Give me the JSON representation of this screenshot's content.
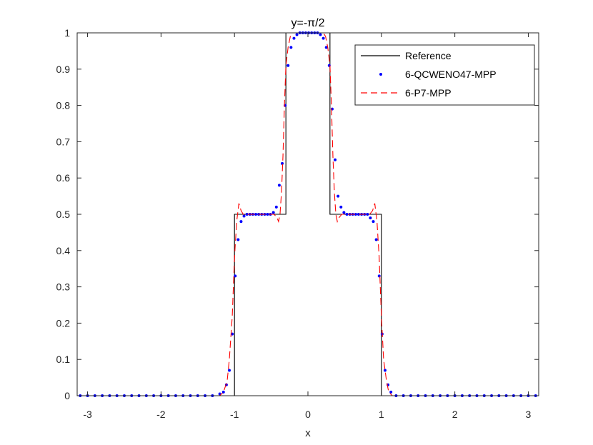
{
  "chart_data": {
    "type": "line",
    "title": "y=-π/2",
    "xlabel": "x",
    "ylabel": "",
    "xlim": [
      -3.14159,
      3.14159
    ],
    "ylim": [
      0,
      1
    ],
    "xticks": [
      -3,
      -2,
      -1,
      0,
      1,
      2,
      3
    ],
    "xtick_labels": [
      "-3",
      "-2",
      "-1",
      "0",
      "1",
      "2",
      "3"
    ],
    "yticks": [
      0,
      0.1,
      0.2,
      0.3,
      0.4,
      0.5,
      0.6,
      0.7,
      0.8,
      0.9,
      1
    ],
    "ytick_labels": [
      "0",
      "0.1",
      "0.2",
      "0.3",
      "0.4",
      "0.5",
      "0.6",
      "0.7",
      "0.8",
      "0.9",
      "1"
    ],
    "grid": false,
    "legend_position": "top-right",
    "series": [
      {
        "name": "Reference",
        "style": "solid",
        "color": "#000000",
        "x": [
          -3.14159,
          -1.0,
          -1.0,
          -0.3,
          -0.3,
          0.3,
          0.3,
          1.0,
          1.0,
          3.14159
        ],
        "y": [
          0,
          0,
          0.5,
          0.5,
          1.0,
          1.0,
          0.5,
          0.5,
          0,
          0
        ]
      },
      {
        "name": "6-QCWENO47-MPP",
        "style": "dots",
        "color": "#0000ff",
        "x": [
          -3.1,
          -3.0,
          -2.9,
          -2.8,
          -2.7,
          -2.6,
          -2.5,
          -2.4,
          -2.3,
          -2.2,
          -2.1,
          -2.0,
          -1.9,
          -1.8,
          -1.7,
          -1.6,
          -1.5,
          -1.4,
          -1.3,
          -1.2,
          -1.15,
          -1.11,
          -1.07,
          -1.03,
          -0.99,
          -0.95,
          -0.91,
          -0.87,
          -0.83,
          -0.79,
          -0.75,
          -0.71,
          -0.67,
          -0.63,
          -0.59,
          -0.55,
          -0.51,
          -0.47,
          -0.43,
          -0.39,
          -0.35,
          -0.31,
          -0.27,
          -0.23,
          -0.19,
          -0.15,
          -0.11,
          -0.07,
          -0.03,
          0.01,
          0.05,
          0.09,
          0.13,
          0.17,
          0.21,
          0.25,
          0.29,
          0.33,
          0.37,
          0.41,
          0.45,
          0.49,
          0.53,
          0.57,
          0.61,
          0.65,
          0.69,
          0.73,
          0.77,
          0.81,
          0.85,
          0.89,
          0.93,
          0.97,
          1.01,
          1.05,
          1.09,
          1.13,
          1.2,
          1.3,
          1.4,
          1.5,
          1.6,
          1.7,
          1.8,
          1.9,
          2.0,
          2.1,
          2.2,
          2.3,
          2.4,
          2.5,
          2.6,
          2.7,
          2.8,
          2.9,
          3.0,
          3.1
        ],
        "y": [
          0,
          0,
          0,
          0,
          0,
          0,
          0,
          0,
          0,
          0,
          0,
          0,
          0,
          0,
          0,
          0,
          0,
          0,
          0,
          0.005,
          0.01,
          0.03,
          0.07,
          0.17,
          0.33,
          0.43,
          0.48,
          0.495,
          0.5,
          0.5,
          0.5,
          0.5,
          0.5,
          0.5,
          0.5,
          0.5,
          0.5,
          0.505,
          0.52,
          0.58,
          0.64,
          0.8,
          0.91,
          0.96,
          0.985,
          0.995,
          1.0,
          1.0,
          1.0,
          1.0,
          1.0,
          1.0,
          1.0,
          0.995,
          0.985,
          0.96,
          0.91,
          0.79,
          0.65,
          0.55,
          0.52,
          0.505,
          0.5,
          0.5,
          0.5,
          0.5,
          0.5,
          0.5,
          0.5,
          0.5,
          0.49,
          0.48,
          0.43,
          0.33,
          0.17,
          0.07,
          0.03,
          0.01,
          0,
          0,
          0,
          0,
          0,
          0,
          0,
          0,
          0,
          0,
          0,
          0,
          0,
          0,
          0,
          0,
          0,
          0,
          0,
          0
        ]
      },
      {
        "name": "6-P7-MPP",
        "style": "dashed",
        "color": "#ff0000",
        "x": [
          -3.14159,
          -1.3,
          -1.2,
          -1.15,
          -1.1,
          -1.07,
          -1.03,
          -1.0,
          -0.97,
          -0.94,
          -0.91,
          -0.88,
          -0.84,
          -0.8,
          -0.75,
          -0.7,
          -0.65,
          -0.6,
          -0.55,
          -0.5,
          -0.46,
          -0.42,
          -0.4,
          -0.38,
          -0.36,
          -0.34,
          -0.32,
          -0.3,
          -0.27,
          -0.24,
          -0.21,
          -0.18,
          -0.14,
          -0.1,
          -0.05,
          0.0,
          0.05,
          0.1,
          0.14,
          0.18,
          0.21,
          0.24,
          0.27,
          0.3,
          0.32,
          0.34,
          0.36,
          0.38,
          0.4,
          0.42,
          0.46,
          0.5,
          0.55,
          0.6,
          0.65,
          0.7,
          0.75,
          0.8,
          0.84,
          0.88,
          0.91,
          0.94,
          0.97,
          1.0,
          1.03,
          1.07,
          1.1,
          1.15,
          1.2,
          1.3,
          3.14159
        ],
        "y": [
          0,
          0,
          0,
          0.01,
          0.04,
          0.1,
          0.22,
          0.38,
          0.48,
          0.53,
          0.51,
          0.5,
          0.5,
          0.5,
          0.5,
          0.5,
          0.5,
          0.5,
          0.5,
          0.5,
          0.5,
          0.49,
          0.48,
          0.5,
          0.56,
          0.66,
          0.8,
          0.91,
          0.96,
          0.99,
          1.0,
          1.0,
          1.0,
          1.0,
          1.0,
          1.0,
          1.0,
          1.0,
          1.0,
          1.0,
          1.0,
          0.99,
          0.96,
          0.91,
          0.8,
          0.66,
          0.56,
          0.5,
          0.48,
          0.49,
          0.5,
          0.5,
          0.5,
          0.5,
          0.5,
          0.5,
          0.5,
          0.5,
          0.5,
          0.51,
          0.53,
          0.48,
          0.38,
          0.22,
          0.1,
          0.04,
          0.01,
          0,
          0,
          0,
          0
        ]
      }
    ]
  }
}
